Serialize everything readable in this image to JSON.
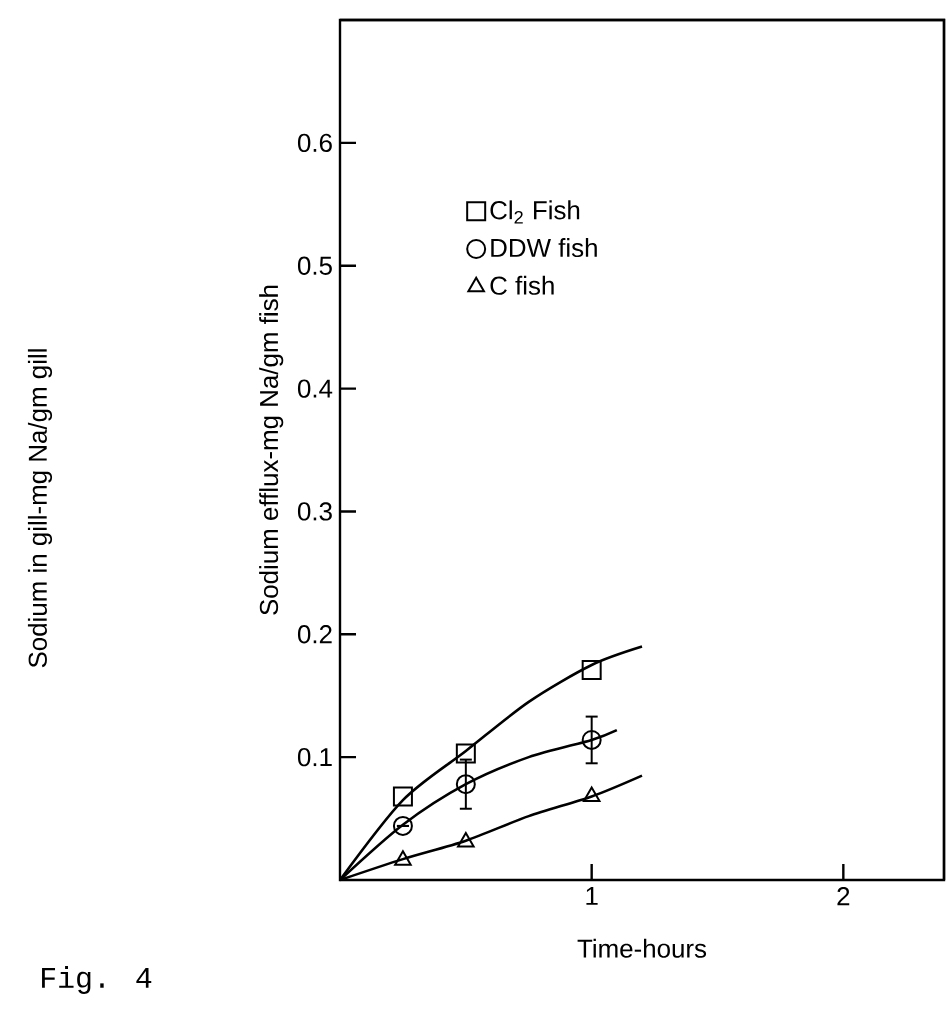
{
  "chart_data": {
    "type": "scatter",
    "xlabel": "Time-hours",
    "ylabel": "Sodium efflux-mg Na/gm fish",
    "annotations": [
      "Sodium in gill-mg Na/gm gill",
      "Fig. 4"
    ],
    "xlim": [
      0,
      2.4
    ],
    "ylim": [
      0,
      0.7
    ],
    "xticks": [
      1,
      2
    ],
    "yticks": [
      0.1,
      0.2,
      0.3,
      0.4,
      0.5,
      0.6
    ],
    "legend": "top left",
    "grid": false,
    "series": [
      {
        "name": "Cl$_{2}$ Fish",
        "marker": "square",
        "color": "#000000",
        "x": [
          0.25,
          0.5,
          1
        ],
        "values": [
          0.068,
          0.103,
          0.171
        ]
      },
      {
        "name": "DDW fish",
        "marker": "circle",
        "color": "#000000",
        "x": [
          0.25,
          0.5,
          1
        ],
        "values": [
          0.044,
          0.078,
          0.114
        ],
        "errors": [
          null,
          0.02,
          0.019
        ]
      },
      {
        "name": "C fish",
        "marker": "triangle",
        "color": "#000000",
        "x": [
          0.25,
          0.5,
          1
        ],
        "values": [
          0.016,
          0.031,
          0.068
        ]
      },
      {
        "type": "line",
        "marker": "none",
        "line_style": "solid",
        "color": "#000000",
        "x": [
          0,
          0.25,
          0.5,
          0.75,
          1,
          1.2
        ],
        "values": [
          0,
          0.065,
          0.105,
          0.145,
          0.175,
          0.19
        ]
      },
      {
        "type": "line",
        "marker": "none",
        "line_style": "solid",
        "color": "#000000",
        "x": [
          0,
          0.25,
          0.5,
          0.75,
          1,
          1.1
        ],
        "values": [
          0,
          0.045,
          0.078,
          0.1,
          0.114,
          0.122
        ]
      },
      {
        "type": "line",
        "marker": "none",
        "line_style": "solid",
        "color": "#000000",
        "x": [
          0,
          0.25,
          0.5,
          0.75,
          1,
          1.2
        ],
        "values": [
          0,
          0.017,
          0.032,
          0.052,
          0.068,
          0.085
        ]
      }
    ]
  }
}
